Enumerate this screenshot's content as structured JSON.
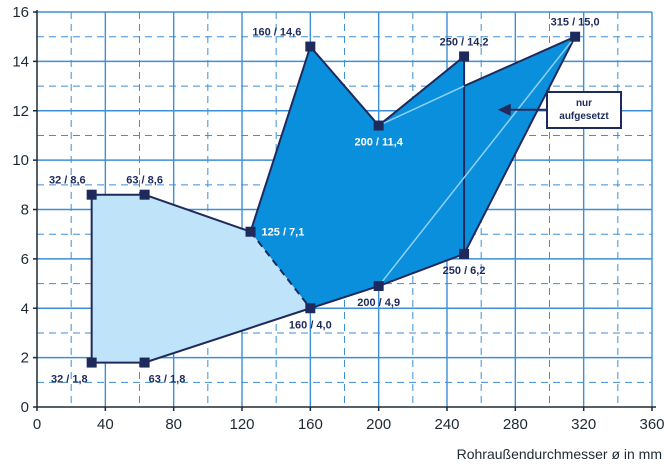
{
  "chart_data": {
    "type": "area",
    "xlabel": "Rohraußendurchmesser ø in mm",
    "ylabel": "",
    "xlim": [
      0,
      360
    ],
    "ylim": [
      0,
      16
    ],
    "x_ticks": [
      0,
      40,
      80,
      120,
      160,
      200,
      240,
      280,
      320,
      360
    ],
    "y_ticks": [
      0,
      2,
      4,
      6,
      8,
      10,
      12,
      14,
      16
    ],
    "grid": true,
    "regions": [
      {
        "fill": "#bfe3f8",
        "points": [
          {
            "x": 32,
            "y": 1.8
          },
          {
            "x": 63,
            "y": 1.8
          },
          {
            "x": 160,
            "y": 4.0
          },
          {
            "x": 125,
            "y": 7.1
          },
          {
            "x": 63,
            "y": 8.6
          },
          {
            "x": 32,
            "y": 8.6
          }
        ]
      },
      {
        "fill": "#0a8fdc",
        "points": [
          {
            "x": 160,
            "y": 4.0
          },
          {
            "x": 200,
            "y": 4.9
          },
          {
            "x": 250,
            "y": 6.2
          },
          {
            "x": 250,
            "y": 14.2
          },
          {
            "x": 200,
            "y": 11.4
          },
          {
            "x": 160,
            "y": 14.6
          },
          {
            "x": 125,
            "y": 7.1
          }
        ]
      },
      {
        "fill": "#0a8fdc",
        "points": [
          {
            "x": 250,
            "y": 13.0
          },
          {
            "x": 315,
            "y": 15.0
          },
          {
            "x": 250,
            "y": 6.2
          }
        ]
      }
    ],
    "points": [
      {
        "x": 32,
        "y": 1.8,
        "label": "32 / 1,8",
        "pos": "bl"
      },
      {
        "x": 63,
        "y": 1.8,
        "label": "63 / 1,8",
        "pos": "br"
      },
      {
        "x": 32,
        "y": 8.6,
        "label": "32 / 8,6",
        "pos": "tl"
      },
      {
        "x": 63,
        "y": 8.6,
        "label": "63 / 8,6",
        "pos": "t"
      },
      {
        "x": 125,
        "y": 7.1,
        "label": "125 / 7,1",
        "pos": "r",
        "inside": true
      },
      {
        "x": 160,
        "y": 4.0,
        "label": "160 / 4,0",
        "pos": "b"
      },
      {
        "x": 200,
        "y": 4.9,
        "label": "200 / 4,9",
        "pos": "b"
      },
      {
        "x": 250,
        "y": 6.2,
        "label": "250 / 6,2",
        "pos": "b"
      },
      {
        "x": 200,
        "y": 11.4,
        "label": "200 / 11,4",
        "pos": "b",
        "inside": true
      },
      {
        "x": 160,
        "y": 14.6,
        "label": "160 / 14,6",
        "pos": "l"
      },
      {
        "x": 250,
        "y": 14.2,
        "label": "250 / 14,2",
        "pos": "t"
      },
      {
        "x": 315,
        "y": 15.0,
        "label": "315 / 15,0",
        "pos": "t"
      }
    ],
    "annotation": {
      "lines": [
        "nur",
        "aufgesetzt"
      ],
      "arrow_to": {
        "x": 258,
        "y": 12.0
      }
    }
  },
  "colors": {
    "background": "#ffffff",
    "grid": "#3d8fd6",
    "axis": "#1f2933",
    "outline": "#1f2a5c",
    "marker": "#1f2a5c",
    "label_dark": "#1f2a5c",
    "label_light": "#ffffff",
    "light_region": "#bfe3f8",
    "dark_region": "#0a8fdc",
    "inner_line": "#8fd0f5"
  }
}
